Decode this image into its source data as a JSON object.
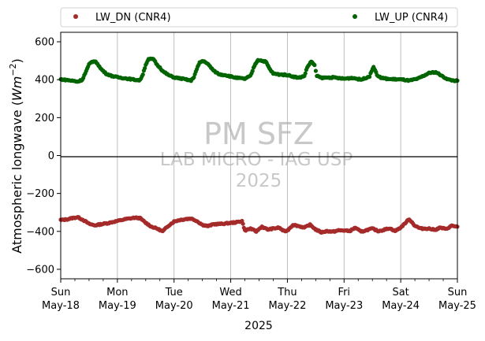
{
  "chart_data": {
    "type": "scatter",
    "ylabel": "Atmospheric longwave (W m^-2)",
    "ylabel_parts": {
      "text": "Atmospheric longwave (",
      "var": "Wm",
      "sup": "−2",
      "close": ")"
    },
    "xlabel": "2025",
    "ylim": [
      -650,
      650
    ],
    "yticks": [
      "−600",
      "−400",
      "−200",
      "0",
      "200",
      "400",
      "600"
    ],
    "ytick_values": [
      -600,
      -400,
      -200,
      0,
      200,
      400,
      600
    ],
    "xlim_days": [
      0,
      7
    ],
    "xticks": [
      {
        "day": "Sun",
        "date": "May-18"
      },
      {
        "day": "Mon",
        "date": "May-19"
      },
      {
        "day": "Tue",
        "date": "May-20"
      },
      {
        "day": "Wed",
        "date": "May-21"
      },
      {
        "day": "Thu",
        "date": "May-22"
      },
      {
        "day": "Fri",
        "date": "May-23"
      },
      {
        "day": "Sat",
        "date": "May-24"
      },
      {
        "day": "Sun",
        "date": "May-25"
      }
    ],
    "grid": "vertical",
    "legend_position": "top",
    "zero_line": true,
    "watermark": [
      "PM SFZ",
      "LAB MICRO - IAG USP",
      "2025"
    ],
    "series": [
      {
        "name": "LW_DN (CNR4)",
        "color": "#a52a2a",
        "points": [
          [
            0.0,
            -340
          ],
          [
            0.1,
            -337
          ],
          [
            0.2,
            -330
          ],
          [
            0.3,
            -325
          ],
          [
            0.4,
            -340
          ],
          [
            0.5,
            -360
          ],
          [
            0.6,
            -368
          ],
          [
            0.7,
            -363
          ],
          [
            0.85,
            -355
          ],
          [
            1.0,
            -345
          ],
          [
            1.15,
            -335
          ],
          [
            1.3,
            -328
          ],
          [
            1.4,
            -330
          ],
          [
            1.5,
            -355
          ],
          [
            1.6,
            -375
          ],
          [
            1.7,
            -385
          ],
          [
            1.8,
            -400
          ],
          [
            1.9,
            -370
          ],
          [
            2.0,
            -348
          ],
          [
            2.1,
            -340
          ],
          [
            2.2,
            -335
          ],
          [
            2.3,
            -332
          ],
          [
            2.4,
            -345
          ],
          [
            2.5,
            -365
          ],
          [
            2.6,
            -372
          ],
          [
            2.7,
            -362
          ],
          [
            2.85,
            -360
          ],
          [
            3.0,
            -355
          ],
          [
            3.1,
            -352
          ],
          [
            3.2,
            -345
          ],
          [
            3.25,
            -395
          ],
          [
            3.35,
            -385
          ],
          [
            3.45,
            -400
          ],
          [
            3.55,
            -375
          ],
          [
            3.65,
            -390
          ],
          [
            3.75,
            -385
          ],
          [
            3.85,
            -380
          ],
          [
            3.95,
            -400
          ],
          [
            4.0,
            -395
          ],
          [
            4.1,
            -365
          ],
          [
            4.2,
            -372
          ],
          [
            4.3,
            -380
          ],
          [
            4.4,
            -365
          ],
          [
            4.5,
            -390
          ],
          [
            4.6,
            -405
          ],
          [
            4.7,
            -398
          ],
          [
            4.8,
            -402
          ],
          [
            4.9,
            -395
          ],
          [
            5.0,
            -395
          ],
          [
            5.1,
            -398
          ],
          [
            5.2,
            -380
          ],
          [
            5.3,
            -402
          ],
          [
            5.4,
            -393
          ],
          [
            5.5,
            -385
          ],
          [
            5.6,
            -398
          ],
          [
            5.7,
            -392
          ],
          [
            5.8,
            -383
          ],
          [
            5.9,
            -398
          ],
          [
            6.0,
            -380
          ],
          [
            6.1,
            -350
          ],
          [
            6.15,
            -335
          ],
          [
            6.25,
            -370
          ],
          [
            6.35,
            -385
          ],
          [
            6.5,
            -385
          ],
          [
            6.6,
            -392
          ],
          [
            6.7,
            -380
          ],
          [
            6.8,
            -388
          ],
          [
            6.9,
            -370
          ],
          [
            7.0,
            -375
          ]
        ]
      },
      {
        "name": "LW_UP (CNR4)",
        "color": "#006400",
        "points": [
          [
            0.0,
            402
          ],
          [
            0.15,
            397
          ],
          [
            0.3,
            390
          ],
          [
            0.38,
            400
          ],
          [
            0.45,
            445
          ],
          [
            0.5,
            480
          ],
          [
            0.55,
            495
          ],
          [
            0.6,
            497
          ],
          [
            0.65,
            485
          ],
          [
            0.7,
            460
          ],
          [
            0.8,
            432
          ],
          [
            0.9,
            420
          ],
          [
            1.0,
            413
          ],
          [
            1.15,
            407
          ],
          [
            1.3,
            400
          ],
          [
            1.4,
            397
          ],
          [
            1.45,
            430
          ],
          [
            1.5,
            480
          ],
          [
            1.55,
            507
          ],
          [
            1.6,
            510
          ],
          [
            1.65,
            505
          ],
          [
            1.7,
            478
          ],
          [
            1.75,
            465
          ],
          [
            1.8,
            445
          ],
          [
            1.9,
            425
          ],
          [
            2.0,
            412
          ],
          [
            2.15,
            405
          ],
          [
            2.3,
            395
          ],
          [
            2.35,
            415
          ],
          [
            2.4,
            455
          ],
          [
            2.45,
            490
          ],
          [
            2.5,
            498
          ],
          [
            2.55,
            495
          ],
          [
            2.62,
            475
          ],
          [
            2.7,
            447
          ],
          [
            2.8,
            428
          ],
          [
            2.9,
            425
          ],
          [
            3.0,
            417
          ],
          [
            3.1,
            410
          ],
          [
            3.25,
            405
          ],
          [
            3.35,
            420
          ],
          [
            3.42,
            475
          ],
          [
            3.48,
            505
          ],
          [
            3.55,
            500
          ],
          [
            3.62,
            495
          ],
          [
            3.68,
            460
          ],
          [
            3.75,
            432
          ],
          [
            3.85,
            428
          ],
          [
            4.0,
            425
          ],
          [
            4.1,
            417
          ],
          [
            4.2,
            410
          ],
          [
            4.3,
            420
          ],
          [
            4.35,
            465
          ],
          [
            4.42,
            497
          ],
          [
            4.48,
            475
          ],
          [
            4.52,
            420
          ],
          [
            4.6,
            410
          ],
          [
            4.8,
            412
          ],
          [
            5.0,
            405
          ],
          [
            5.15,
            410
          ],
          [
            5.3,
            400
          ],
          [
            5.45,
            418
          ],
          [
            5.52,
            470
          ],
          [
            5.58,
            425
          ],
          [
            5.65,
            410
          ],
          [
            5.8,
            403
          ],
          [
            5.95,
            402
          ],
          [
            6.05,
            400
          ],
          [
            6.15,
            395
          ],
          [
            6.3,
            405
          ],
          [
            6.4,
            420
          ],
          [
            6.5,
            435
          ],
          [
            6.6,
            440
          ],
          [
            6.65,
            435
          ],
          [
            6.75,
            415
          ],
          [
            6.85,
            400
          ],
          [
            6.95,
            395
          ],
          [
            7.0,
            395
          ]
        ]
      }
    ]
  }
}
